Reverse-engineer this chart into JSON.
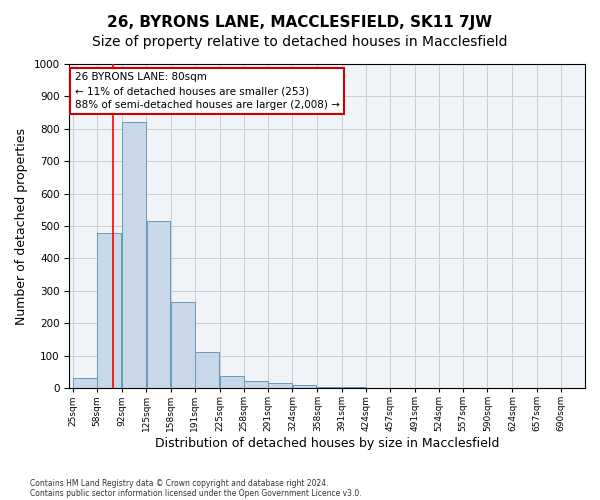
{
  "title1": "26, BYRONS LANE, MACCLESFIELD, SK11 7JW",
  "title2": "Size of property relative to detached houses in Macclesfield",
  "xlabel": "Distribution of detached houses by size in Macclesfield",
  "ylabel": "Number of detached properties",
  "bin_labels": [
    "25sqm",
    "58sqm",
    "92sqm",
    "125sqm",
    "158sqm",
    "191sqm",
    "225sqm",
    "258sqm",
    "291sqm",
    "324sqm",
    "358sqm",
    "391sqm",
    "424sqm",
    "457sqm",
    "491sqm",
    "524sqm",
    "557sqm",
    "590sqm",
    "624sqm",
    "657sqm",
    "690sqm"
  ],
  "bin_edges": [
    25,
    58,
    92,
    125,
    158,
    191,
    225,
    258,
    291,
    324,
    358,
    391,
    424,
    457,
    491,
    524,
    557,
    590,
    624,
    657,
    690
  ],
  "bar_heights": [
    30,
    480,
    820,
    515,
    265,
    110,
    38,
    22,
    15,
    10,
    5,
    2,
    1,
    0,
    0,
    0,
    0,
    0,
    0,
    0
  ],
  "bar_color": "#c8d8e8",
  "bar_edgecolor": "#6699bb",
  "property_size": 80,
  "red_line_x": 80,
  "annotation_text": "26 BYRONS LANE: 80sqm\n← 11% of detached houses are smaller (253)\n88% of semi-detached houses are larger (2,008) →",
  "annotation_box_color": "#ffffff",
  "annotation_box_edgecolor": "#cc0000",
  "ylim": [
    0,
    1000
  ],
  "yticks": [
    0,
    100,
    200,
    300,
    400,
    500,
    600,
    700,
    800,
    900,
    1000
  ],
  "grid_color": "#cccccc",
  "bg_color": "#f0f4f8",
  "footer1": "Contains HM Land Registry data © Crown copyright and database right 2024.",
  "footer2": "Contains public sector information licensed under the Open Government Licence v3.0.",
  "title1_fontsize": 11,
  "title2_fontsize": 10,
  "xlabel_fontsize": 9,
  "ylabel_fontsize": 9
}
